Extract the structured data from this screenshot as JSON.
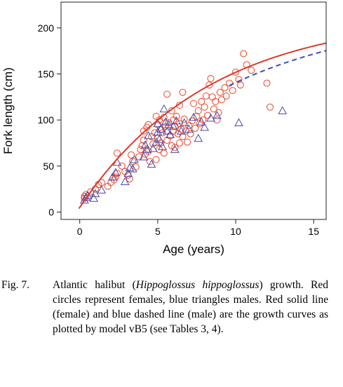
{
  "chart_data": {
    "type": "scatter",
    "xlabel": "Age (years)",
    "ylabel": "Fork length (cm)",
    "xlim": [
      -1.2,
      15.8
    ],
    "ylim": [
      -8,
      228
    ],
    "xticks": [
      0,
      5,
      10,
      15
    ],
    "yticks": [
      0,
      50,
      100,
      150,
      200
    ],
    "grid": false,
    "legend": "none",
    "series": [
      {
        "marker": "circle",
        "color": "#e8452a",
        "points": [
          [
            0.3,
            15
          ],
          [
            0.3,
            17
          ],
          [
            0.4,
            19
          ],
          [
            0.7,
            22
          ],
          [
            1.0,
            25
          ],
          [
            1.2,
            30
          ],
          [
            1.4,
            32
          ],
          [
            1.8,
            28
          ],
          [
            2.0,
            32
          ],
          [
            2.2,
            35
          ],
          [
            2.3,
            38
          ],
          [
            2.4,
            42
          ],
          [
            2.4,
            64
          ],
          [
            2.7,
            50
          ],
          [
            2.9,
            44
          ],
          [
            3.1,
            40
          ],
          [
            3.2,
            36
          ],
          [
            3.3,
            62
          ],
          [
            3.4,
            55
          ],
          [
            3.6,
            49
          ],
          [
            3.8,
            60
          ],
          [
            3.9,
            68
          ],
          [
            4.0,
            72
          ],
          [
            4.1,
            78
          ],
          [
            4.1,
            88
          ],
          [
            4.2,
            63
          ],
          [
            4.3,
            92
          ],
          [
            4.4,
            66
          ],
          [
            4.4,
            95
          ],
          [
            4.5,
            55
          ],
          [
            4.6,
            82
          ],
          [
            4.7,
            74
          ],
          [
            4.8,
            86
          ],
          [
            4.9,
            57
          ],
          [
            5.0,
            95
          ],
          [
            5.0,
            80
          ],
          [
            5.1,
            68
          ],
          [
            5.1,
            100
          ],
          [
            5.2,
            75
          ],
          [
            5.2,
            90
          ],
          [
            5.3,
            86
          ],
          [
            5.4,
            64
          ],
          [
            5.4,
            103
          ],
          [
            5.5,
            93
          ],
          [
            5.6,
            78
          ],
          [
            5.7,
            97
          ],
          [
            5.8,
            83
          ],
          [
            5.9,
            72
          ],
          [
            6.0,
            88
          ],
          [
            6.0,
            100
          ],
          [
            6.1,
            70
          ],
          [
            6.1,
            93
          ],
          [
            6.2,
            104
          ],
          [
            6.3,
            85
          ],
          [
            6.4,
            75
          ],
          [
            6.4,
            96
          ],
          [
            6.5,
            90
          ],
          [
            6.6,
            82
          ],
          [
            6.7,
            101
          ],
          [
            6.8,
            88
          ],
          [
            6.9,
            76
          ],
          [
            7.0,
            94
          ],
          [
            7.1,
            85
          ],
          [
            7.2,
            99
          ],
          [
            7.3,
            118
          ],
          [
            7.4,
            91
          ],
          [
            7.5,
            104
          ],
          [
            7.6,
            110
          ],
          [
            7.7,
            96
          ],
          [
            7.8,
            120
          ],
          [
            7.9,
            100
          ],
          [
            8.0,
            114
          ],
          [
            8.1,
            126
          ],
          [
            8.2,
            105
          ],
          [
            8.3,
            138
          ],
          [
            8.4,
            145
          ],
          [
            8.5,
            125
          ],
          [
            8.6,
            112
          ],
          [
            8.7,
            120
          ],
          [
            8.8,
            100
          ],
          [
            8.9,
            108
          ],
          [
            9.0,
            130
          ],
          [
            9.1,
            122
          ],
          [
            9.3,
            135
          ],
          [
            9.4,
            126
          ],
          [
            9.6,
            140
          ],
          [
            9.8,
            132
          ],
          [
            10.0,
            152
          ],
          [
            10.2,
            144
          ],
          [
            10.3,
            138
          ],
          [
            10.5,
            172
          ],
          [
            10.7,
            160
          ],
          [
            11.0,
            154
          ],
          [
            12.0,
            140
          ],
          [
            12.2,
            114
          ],
          [
            6.6,
            130
          ],
          [
            5.6,
            128
          ],
          [
            4.9,
            104
          ],
          [
            5.9,
            110
          ],
          [
            6.4,
            116
          ]
        ]
      },
      {
        "marker": "triangle",
        "color": "#4a4aa6",
        "points": [
          [
            0.3,
            13
          ],
          [
            0.4,
            16
          ],
          [
            0.5,
            18
          ],
          [
            0.9,
            15
          ],
          [
            1.0,
            20
          ],
          [
            1.4,
            24
          ],
          [
            2.1,
            38
          ],
          [
            2.3,
            43
          ],
          [
            2.4,
            54
          ],
          [
            2.9,
            33
          ],
          [
            3.1,
            42
          ],
          [
            3.2,
            48
          ],
          [
            3.4,
            47
          ],
          [
            3.5,
            57
          ],
          [
            4.1,
            60
          ],
          [
            4.2,
            73
          ],
          [
            4.3,
            68
          ],
          [
            4.4,
            83
          ],
          [
            4.6,
            52
          ],
          [
            4.7,
            69
          ],
          [
            4.9,
            76
          ],
          [
            5.0,
            87
          ],
          [
            5.0,
            96
          ],
          [
            5.1,
            79
          ],
          [
            5.2,
            90
          ],
          [
            5.3,
            71
          ],
          [
            5.4,
            112
          ],
          [
            5.5,
            98
          ],
          [
            5.6,
            88
          ],
          [
            5.7,
            95
          ],
          [
            5.8,
            84
          ],
          [
            6.0,
            93
          ],
          [
            6.1,
            68
          ],
          [
            6.2,
            99
          ],
          [
            6.5,
            88
          ],
          [
            6.7,
            97
          ],
          [
            7.0,
            90
          ],
          [
            7.3,
            103
          ],
          [
            7.6,
            80
          ],
          [
            7.8,
            98
          ],
          [
            8.0,
            92
          ],
          [
            8.4,
            102
          ],
          [
            8.8,
            105
          ],
          [
            10.2,
            97
          ],
          [
            13.0,
            110
          ]
        ]
      }
    ],
    "curves": [
      {
        "color": "#d93a2a",
        "dash": "solid",
        "k": 0.12,
        "Linf": 215,
        "t0": -0.2,
        "x": [
          -0.05,
          15.8
        ]
      },
      {
        "color": "#3b4fb3",
        "dash": "dashed",
        "k": 0.099,
        "Linf": 220,
        "t0": -0.3,
        "x": [
          9.6,
          15.8
        ]
      }
    ]
  },
  "caption": {
    "label": "Fig. 7.",
    "part1": "Atlantic halibut (",
    "species": "Hippoglossus hippoglossus",
    "part2": ") growth. Red circles represent females, blue triangles males. Red solid line (female) and blue dashed line (male) are the growth curves as plotted by model vB5 (see Tables 3, 4)."
  }
}
